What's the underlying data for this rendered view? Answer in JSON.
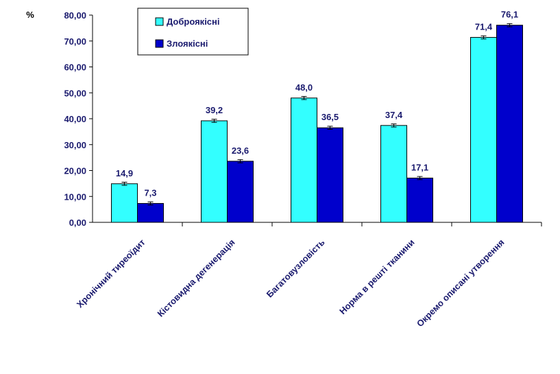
{
  "chart_data": {
    "type": "bar",
    "title": "",
    "ylabel": "%",
    "xlabel": "",
    "ylim": [
      0,
      80
    ],
    "ytick_step": 10,
    "ytick_labels": [
      "0,00",
      "10,00",
      "20,00",
      "30,00",
      "40,00",
      "50,00",
      "60,00",
      "70,00",
      "80,00"
    ],
    "grid": false,
    "legend_position": "top-center",
    "categories": [
      "Хронічний тиреоїдит",
      "Кістовидна дегенерація",
      "Багатовузловість",
      "Норма в решті тканини",
      "Окремо описані утворення"
    ],
    "series": [
      {
        "name": "Доброякісні",
        "color": "#33ffff",
        "values": [
          14.9,
          39.2,
          48.0,
          37.4,
          71.4
        ],
        "labels": [
          "14,9",
          "39,2",
          "48,0",
          "37,4",
          "71,4"
        ]
      },
      {
        "name": "Злоякісні",
        "color": "#0000cc",
        "values": [
          7.3,
          23.6,
          36.5,
          17.1,
          76.1
        ],
        "labels": [
          "7,3",
          "23,6",
          "36,5",
          "17,1",
          "76,1"
        ]
      }
    ],
    "error_bars": true
  }
}
